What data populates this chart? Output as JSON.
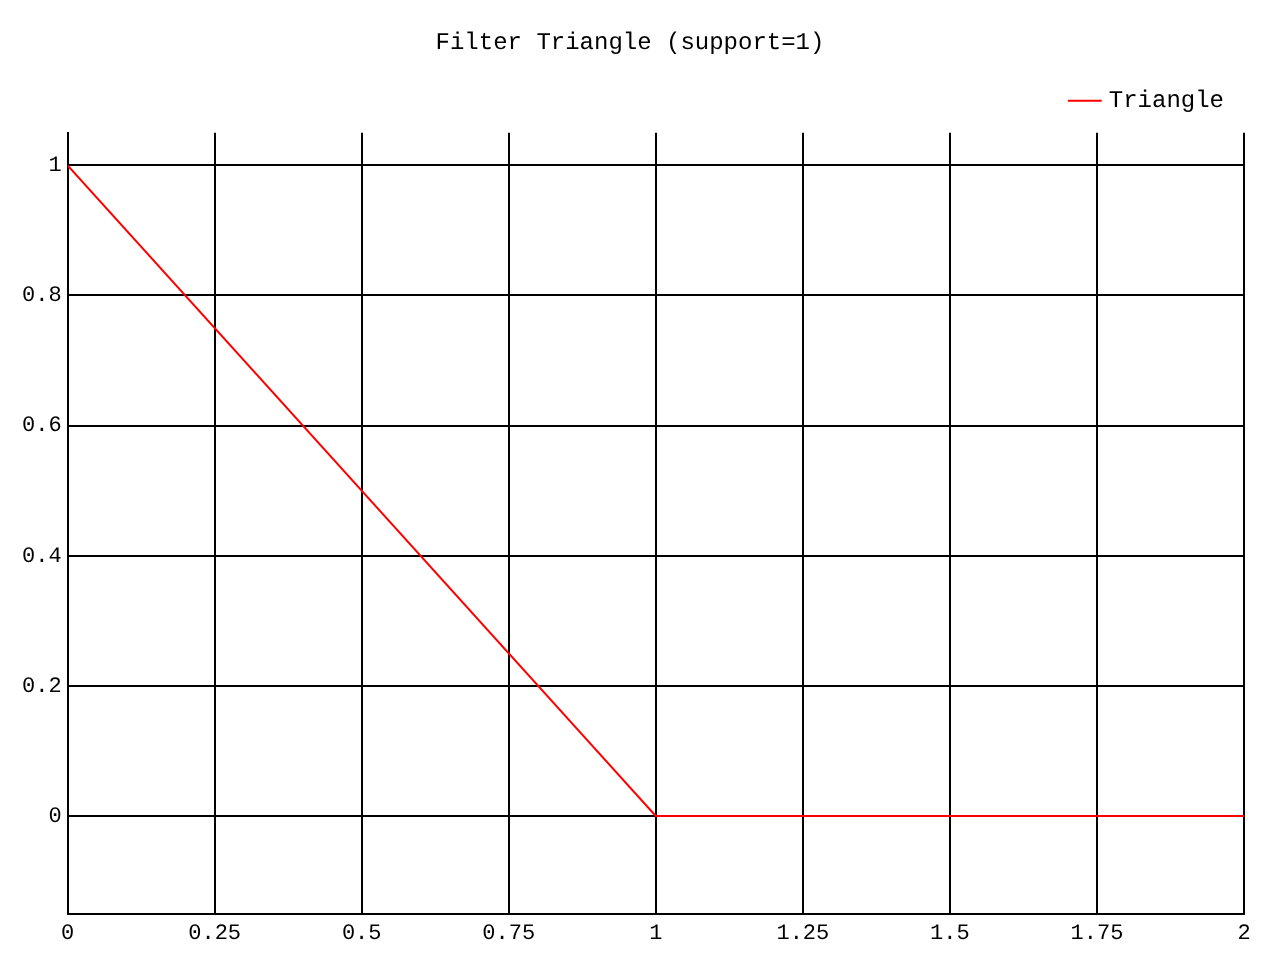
{
  "chart_data": {
    "type": "line",
    "title": "Filter Triangle (support=1)",
    "x": [
      0,
      1,
      2
    ],
    "series": [
      {
        "name": "Triangle",
        "color": "#ff0000",
        "values": [
          1,
          0,
          0
        ]
      }
    ],
    "xlim": [
      0,
      2
    ],
    "xticks": [
      0,
      0.25,
      0.5,
      0.75,
      1,
      1.25,
      1.5,
      1.75,
      2
    ],
    "ylim": [
      -0.15,
      1.05
    ],
    "yticks": [
      0,
      0.2,
      0.4,
      0.6,
      0.8,
      1
    ],
    "grid": true,
    "legend": "top right",
    "marker": "none",
    "line_style": "solid"
  }
}
